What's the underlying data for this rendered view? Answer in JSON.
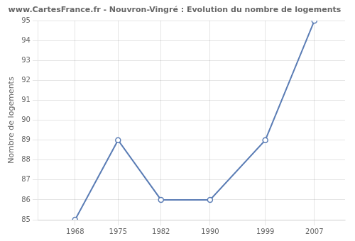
{
  "chart_data": {
    "type": "line",
    "title": "www.CartesFrance.fr - Nouvron-Vingré : Evolution du nombre de logements",
    "ylabel": "Nombre de logements",
    "x": [
      1968,
      1975,
      1982,
      1990,
      1999,
      2007
    ],
    "values": [
      85,
      89,
      86,
      86,
      89,
      95
    ],
    "color": "#5b7db5",
    "marker": "circle",
    "xlim": [
      1962,
      2012
    ],
    "xticks": [
      1968,
      1975,
      1982,
      1990,
      1999,
      2007
    ],
    "ylim": [
      85,
      95
    ],
    "yticks": [
      85,
      86,
      87,
      88,
      89,
      90,
      91,
      92,
      93,
      94,
      95
    ],
    "grid": true
  }
}
